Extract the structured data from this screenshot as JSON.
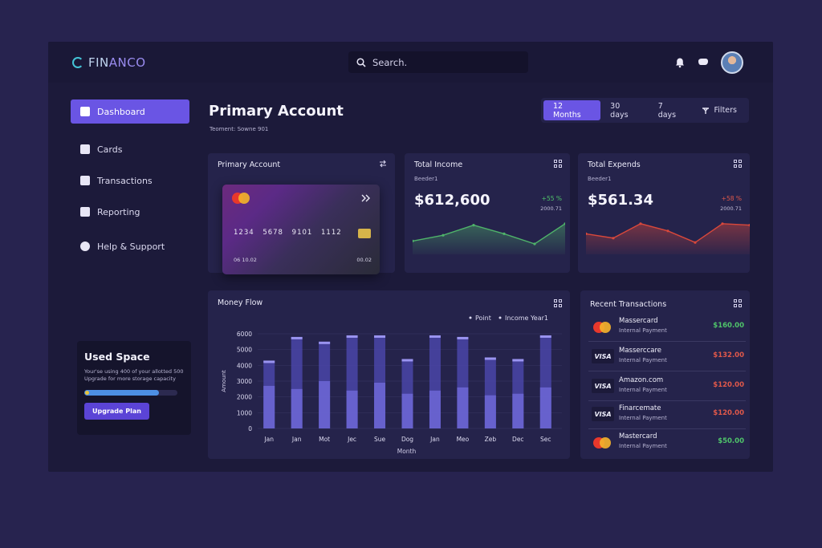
{
  "header": {
    "logo_prefix": "FIN",
    "logo_suffix": "ANCO",
    "search_placeholder": "Search."
  },
  "sidebar": {
    "items": [
      {
        "label": "Dashboard",
        "active": true
      },
      {
        "label": "Cards"
      },
      {
        "label": "Transactions"
      },
      {
        "label": "Reporting"
      },
      {
        "label": "Help & Support"
      }
    ],
    "used_space": {
      "title": "Used Space",
      "description": "Your'se using 400 of your allotted 500 Upgrade for more storage capacity",
      "progress": 0.8,
      "button": "Upgrade Plan"
    }
  },
  "page": {
    "title": "Primary Account",
    "subtitle": "Teoment: Sowne 901",
    "ranges": [
      "12 Months",
      "30 days",
      "7 days",
      "Filters"
    ]
  },
  "primary_card": {
    "title": "Primary Account",
    "number": "1234 5678 9101 1112",
    "expiry_left": "06 10.02",
    "expiry_right": "00.02"
  },
  "income": {
    "title": "Total Income",
    "subtitle": "Beeder1",
    "value": "$612,600",
    "change": "+55 %",
    "change_sub": "2000.71",
    "color": "#4fb36a",
    "points": [
      0.35,
      0.55,
      0.9,
      0.6,
      0.25,
      0.95
    ]
  },
  "expends": {
    "title": "Total Expends",
    "subtitle": "Beeder1",
    "value": "$561.34",
    "change": "+58 %",
    "change_sub": "2000.71",
    "color": "#d9483b",
    "points": [
      0.6,
      0.45,
      0.95,
      0.7,
      0.3,
      0.95,
      0.9
    ]
  },
  "chart_data": {
    "type": "bar",
    "title": "Money Flow",
    "ylabel": "Amount",
    "xlabel": "Month",
    "legend": [
      "Point",
      "Income Year1"
    ],
    "legend_position": "top-right",
    "ylim": [
      0,
      6000
    ],
    "yticks": [
      0,
      1000,
      2000,
      3000,
      4000,
      5000,
      6000
    ],
    "categories": [
      "Jan",
      "Jan",
      "Mot",
      "Jec",
      "Sue",
      "Dog",
      "Jan",
      "Meo",
      "Zeb",
      "Dec",
      "Sec"
    ],
    "series": [
      {
        "name": "Point",
        "values": [
          2700,
          2500,
          3000,
          2400,
          2900,
          2200,
          2400,
          2600,
          2100,
          2200,
          2600
        ]
      },
      {
        "name": "Income Year1",
        "values": [
          4300,
          5800,
          5500,
          5900,
          5900,
          4400,
          5900,
          5800,
          4500,
          4400,
          5900
        ]
      }
    ],
    "grid": true
  },
  "transactions": {
    "title": "Recent Transactions",
    "items": [
      {
        "logo": "mastercard",
        "name": "Massercard",
        "type": "Internal Payment",
        "amount": "$160.00",
        "color": "#4fc46a"
      },
      {
        "logo": "visa",
        "logo_text": "VISA",
        "name": "Masserccare",
        "type": "Internal Payment",
        "amount": "$132.00",
        "color": "#e0584a"
      },
      {
        "logo": "visa",
        "logo_text": "VISA",
        "name": "Amazon.com",
        "type": "Internal Payment",
        "amount": "$120.00",
        "color": "#e0584a"
      },
      {
        "logo": "visa",
        "logo_text": "VISA",
        "name": "Finarcemate",
        "type": "Internal Payment",
        "amount": "$120.00",
        "color": "#e0584a"
      },
      {
        "logo": "mastercard",
        "name": "Mastercard",
        "type": "Internal Payment",
        "amount": "$50.00",
        "color": "#4fc46a"
      }
    ]
  }
}
